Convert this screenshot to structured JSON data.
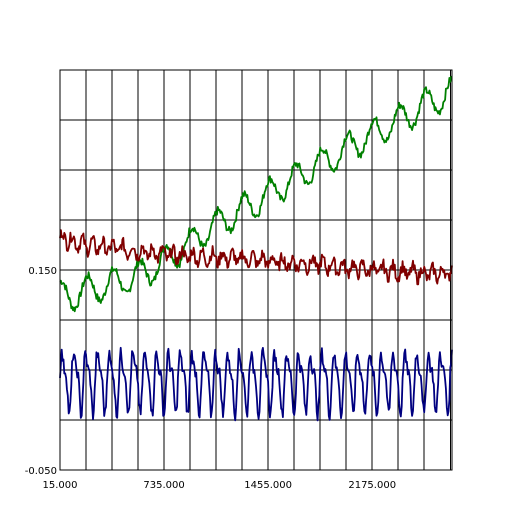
{
  "chart_data": {
    "type": "line",
    "title": "",
    "xlabel": "",
    "ylabel": "",
    "xlim": [
      15,
      2727
    ],
    "ylim": [
      -0.05,
      0.35
    ],
    "grid": true,
    "x_ticks": [
      {
        "value": 15,
        "label": "15.000"
      },
      {
        "value": 735,
        "label": "735.000"
      },
      {
        "value": 1455,
        "label": "1455.000"
      },
      {
        "value": 2175,
        "label": "2175.000"
      }
    ],
    "y_ticks": [
      {
        "value": 0.15,
        "label": "0.150"
      },
      {
        "value": -0.05,
        "label": "-0.050"
      }
    ],
    "x_gridlines": [
      15,
      195,
      375,
      555,
      735,
      915,
      1095,
      1275,
      1455,
      1635,
      1815,
      1995,
      2175,
      2355,
      2535,
      2715
    ],
    "y_gridlines": [
      0.35,
      0.3,
      0.25,
      0.2,
      0.15,
      0.1,
      0.05,
      0.0
    ],
    "series": [
      {
        "color": "#008000",
        "x": [
          15,
          110,
          200,
          295,
          390,
          480,
          560,
          640,
          735,
          820,
          900,
          990,
          1080,
          1180,
          1280,
          1380,
          1455,
          1560,
          1660,
          1760,
          1860,
          1960,
          2060,
          2175,
          2280,
          2380,
          2480,
          2580,
          2680,
          2727
        ],
        "y": [
          0.14,
          0.13,
          0.14,
          0.12,
          0.145,
          0.115,
          0.15,
          0.13,
          0.165,
          0.15,
          0.18,
          0.17,
          0.2,
          0.185,
          0.225,
          0.205,
          0.24,
          0.215,
          0.26,
          0.235,
          0.275,
          0.25,
          0.3,
          0.265,
          0.325,
          0.28,
          0.335,
          0.29,
          0.34,
          0.33
        ],
        "mean": [
          0.125,
          0.125,
          0.13,
          0.133,
          0.137,
          0.14,
          0.145,
          0.15,
          0.16,
          0.168,
          0.176,
          0.185,
          0.193,
          0.202,
          0.211,
          0.219,
          0.226,
          0.235,
          0.243,
          0.252,
          0.26,
          0.268,
          0.277,
          0.286,
          0.294,
          0.302,
          0.31,
          0.318,
          0.325,
          0.328
        ],
        "amplitude": 0.014,
        "noise": 0.004
      },
      {
        "color": "#800000",
        "x": [
          15,
          200,
          400,
          600,
          800,
          1000,
          1200,
          1400,
          1600,
          1800,
          2000,
          2200,
          2400,
          2600,
          2727
        ],
        "y": [
          0.183,
          0.175,
          0.172,
          0.168,
          0.165,
          0.163,
          0.162,
          0.16,
          0.157,
          0.156,
          0.152,
          0.15,
          0.148,
          0.146,
          0.148
        ],
        "amplitude": 0.01,
        "noise": 0.006
      },
      {
        "color": "#000080",
        "x": [
          15,
          300,
          600,
          900,
          1200,
          1500,
          1800,
          2100,
          2400,
          2727
        ],
        "y": [
          0.04,
          0.04,
          0.04,
          0.04,
          0.04,
          0.04,
          0.04,
          0.04,
          0.04,
          0.04
        ],
        "amplitude": 0.026,
        "noise": 0.006
      }
    ]
  }
}
